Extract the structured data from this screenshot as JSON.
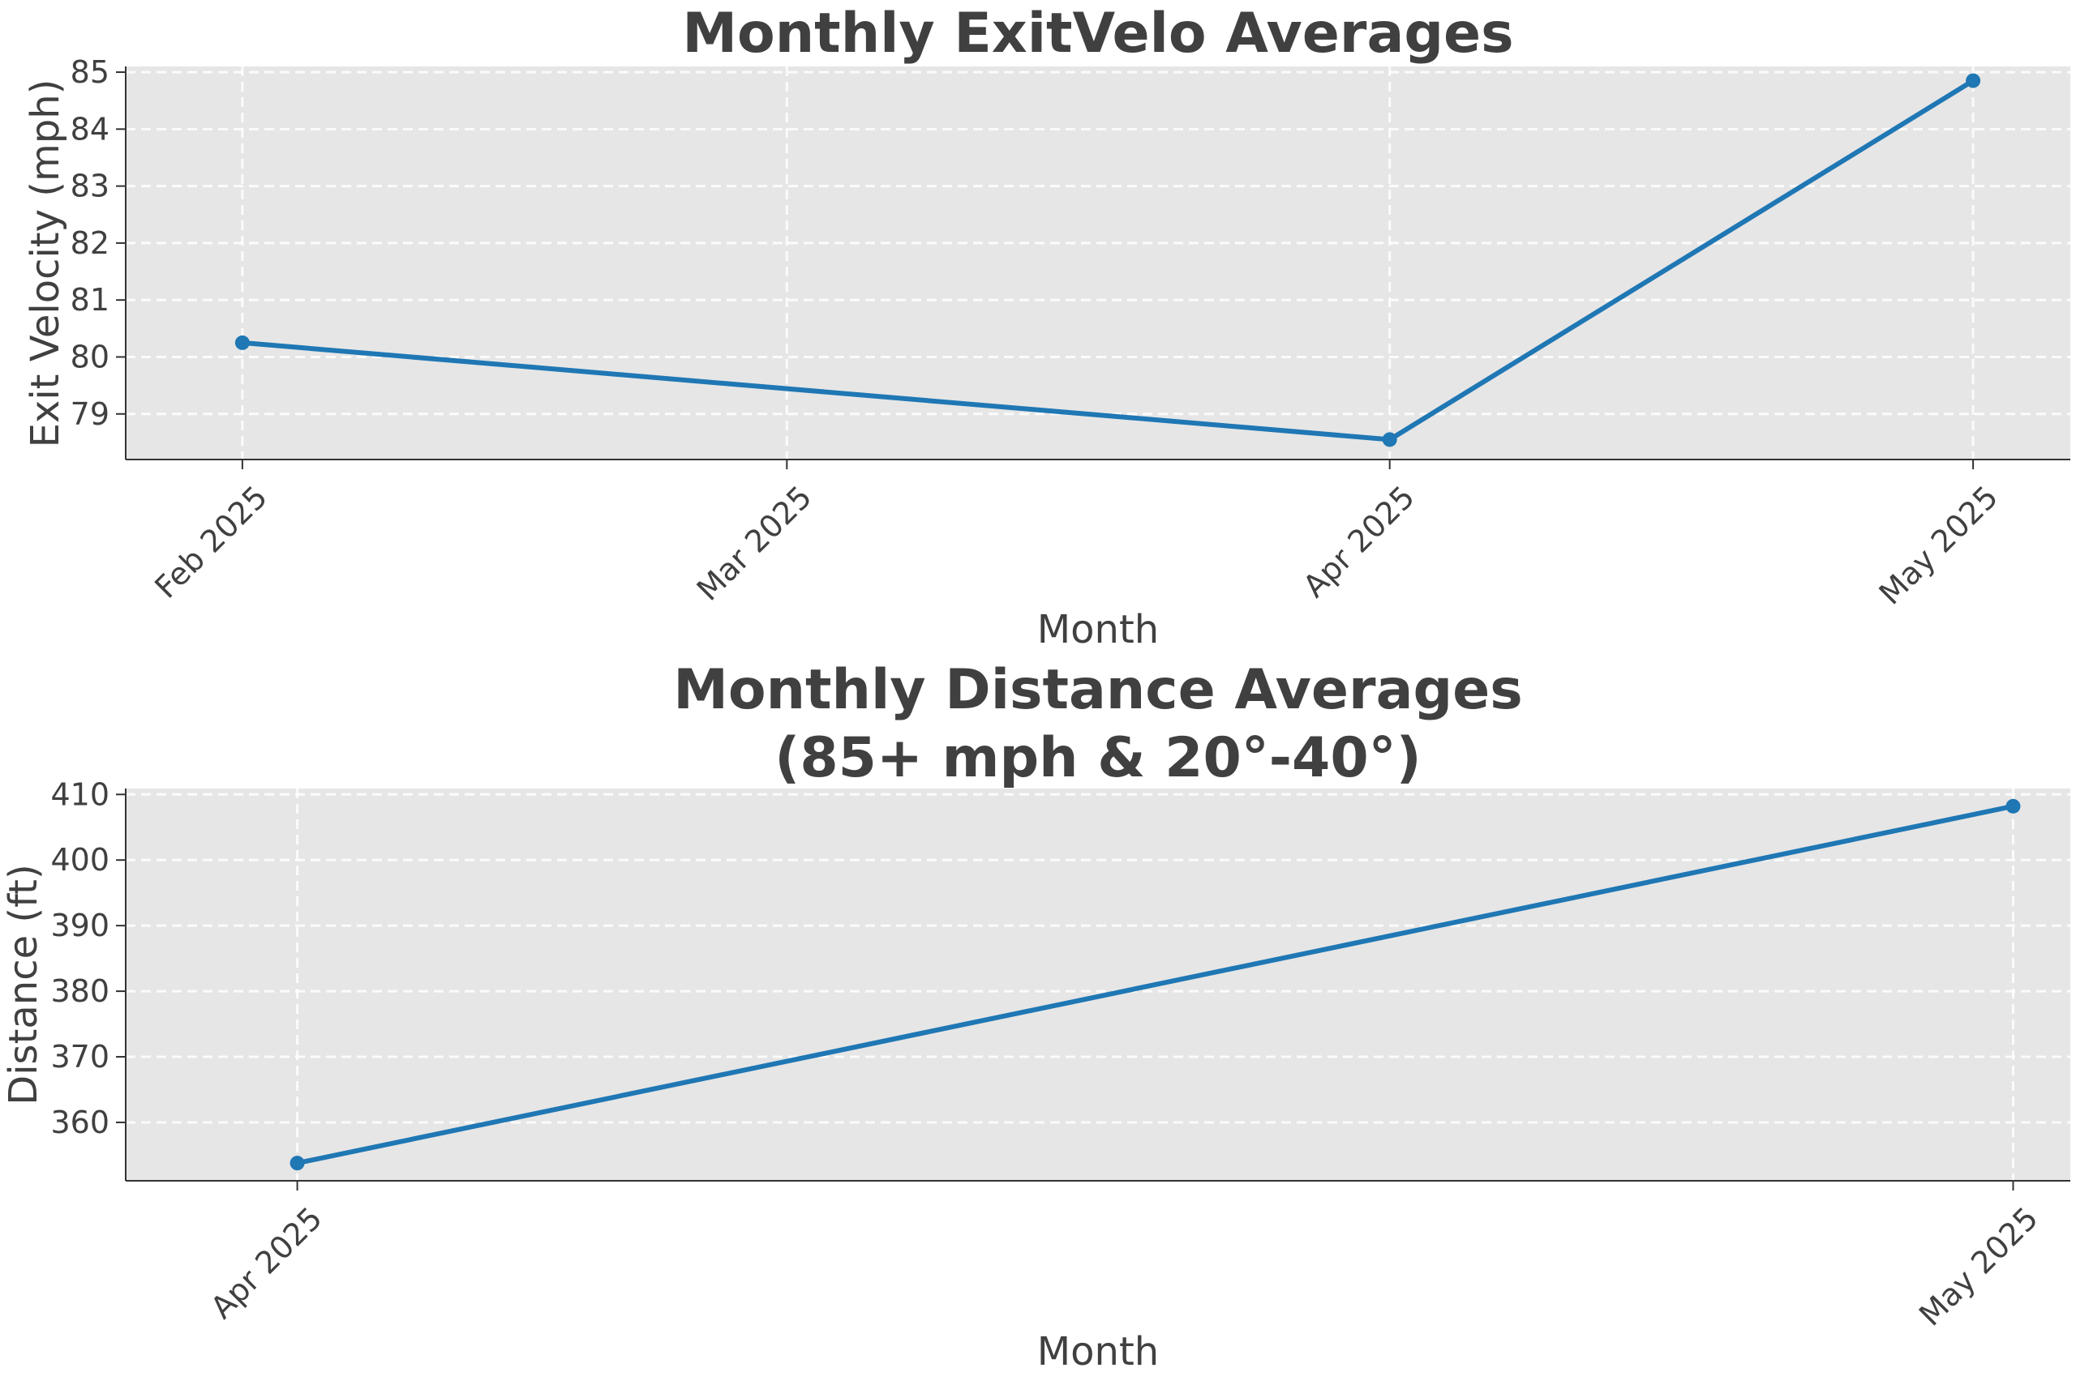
{
  "colors": {
    "series": "#1f77b4",
    "panel": "#e6e6e6",
    "text": "#404040"
  },
  "chart_data": [
    {
      "type": "line",
      "title": "Monthly ExitVelo Averages",
      "xlabel": "Month",
      "ylabel": "Exit Velocity (mph)",
      "x_tick_labels": [
        "Feb 2025",
        "Mar 2025",
        "Apr 2025",
        "May 2025"
      ],
      "x_ticks": [
        "2025-02-01",
        "2025-03-01",
        "2025-04-01",
        "2025-05-01"
      ],
      "y_ticks": [
        79,
        80,
        81,
        82,
        83,
        84,
        85
      ],
      "ylim": [
        78.2,
        85.1
      ],
      "xlim": [
        "2025-01-26",
        "2025-05-06"
      ],
      "grid": true,
      "series": [
        {
          "x": [
            "2025-02-01",
            "2025-04-01",
            "2025-05-01"
          ],
          "y": [
            80.25,
            78.55,
            84.85
          ]
        }
      ]
    },
    {
      "type": "line",
      "title": "Monthly Distance Averages\n(85+ mph & 20°-40°)",
      "title_lines": [
        "Monthly Distance Averages",
        "(85+ mph & 20°-40°)"
      ],
      "xlabel": "Month",
      "ylabel": "Distance (ft)",
      "x_tick_labels": [
        "Apr 2025",
        "May 2025"
      ],
      "x_ticks": [
        "2025-04-01",
        "2025-05-01"
      ],
      "y_ticks": [
        360,
        370,
        380,
        390,
        400,
        410
      ],
      "ylim": [
        351.1,
        410.9
      ],
      "xlim": [
        "2025-03-29",
        "2025-05-02"
      ],
      "grid": true,
      "series": [
        {
          "x": [
            "2025-04-01",
            "2025-05-01"
          ],
          "y": [
            353.8,
            408.2
          ]
        }
      ]
    }
  ]
}
